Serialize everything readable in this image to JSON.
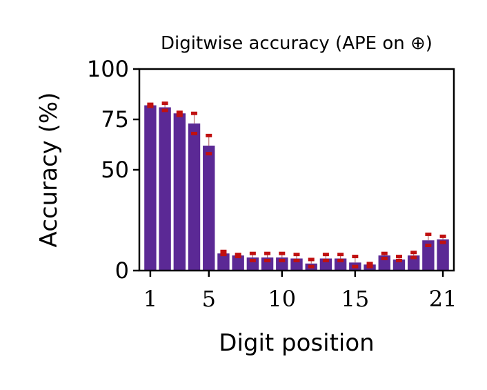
{
  "chart_data": {
    "type": "bar",
    "title": "Digitwise accuracy (APE on ⊕)",
    "xlabel": "Digit position",
    "ylabel": "Accuracy (%)",
    "ylim": [
      0,
      100
    ],
    "yticks": [
      0,
      50,
      75,
      100
    ],
    "xticks": [
      1,
      5,
      10,
      15,
      21
    ],
    "categories": [
      1,
      2,
      3,
      4,
      5,
      6,
      7,
      8,
      9,
      10,
      11,
      12,
      13,
      14,
      15,
      16,
      17,
      18,
      19,
      20,
      21
    ],
    "series": [
      {
        "values": [
          82,
          81,
          78,
          73,
          62,
          8.5,
          7.5,
          6.5,
          6.5,
          6.5,
          6,
          3.5,
          6,
          6,
          4,
          3,
          7.5,
          5.5,
          7.5,
          15,
          15.5
        ],
        "run_values": [
          [
            81.5,
            82.5
          ],
          [
            79.5,
            83
          ],
          [
            77,
            78.5
          ],
          [
            68,
            78
          ],
          [
            58,
            67
          ],
          [
            8,
            9.5
          ],
          [
            8,
            7
          ],
          [
            5,
            8.5
          ],
          [
            5,
            8.5
          ],
          [
            5,
            8.5
          ],
          [
            5,
            8
          ],
          [
            2,
            5.5
          ],
          [
            5,
            8
          ],
          [
            5,
            8
          ],
          [
            2,
            7
          ],
          [
            2,
            3.5
          ],
          [
            6,
            8.5
          ],
          [
            5,
            7
          ],
          [
            6.5,
            9
          ],
          [
            12.5,
            18
          ],
          [
            14,
            17
          ]
        ]
      }
    ],
    "colors": {
      "bar": "#5b2995",
      "marker": "#c01010",
      "axis": "#000000"
    },
    "grid": false,
    "legend": false
  }
}
